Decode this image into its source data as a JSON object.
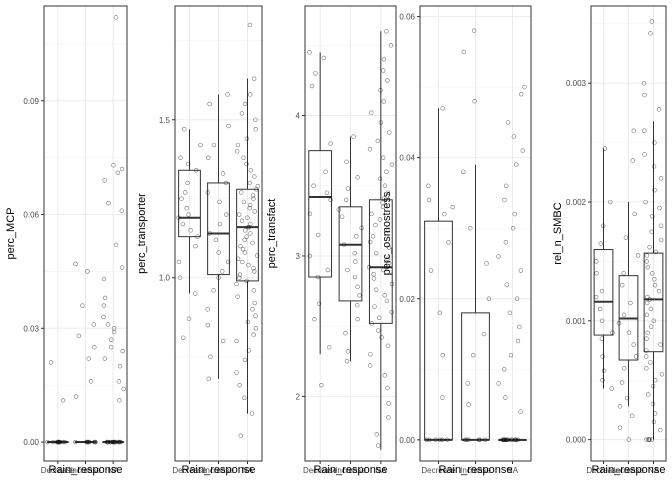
{
  "chart_data": [
    {
      "type": "box",
      "ylabel": "perc_MCP",
      "xlabel": "Rain_response",
      "categories": [
        "Decrease",
        "Increase",
        "NA"
      ],
      "ylim": [
        -0.005,
        0.115
      ],
      "yticks": [
        0.0,
        0.03,
        0.06,
        0.09
      ],
      "ytick_labels": [
        "0.00",
        "0.03",
        "0.06",
        "0.09"
      ],
      "grid": true,
      "boxes": [
        {
          "category": "Decrease",
          "min": 0.0,
          "q1": 0.0,
          "median": 0.0,
          "q3": 0.0,
          "max": 0.0
        },
        {
          "category": "Increase",
          "min": 0.0,
          "q1": 0.0,
          "median": 0.0,
          "q3": 0.0,
          "max": 0.0
        },
        {
          "category": "NA",
          "min": 0.0,
          "q1": 0.0,
          "median": 0.0,
          "q3": 0.0,
          "max": 0.0
        }
      ],
      "points": {
        "Decrease": [
          0.021,
          0.011,
          0,
          0,
          0,
          0,
          0,
          0,
          0,
          0,
          0,
          0,
          0
        ],
        "Increase": [
          0.045,
          0.047,
          0.036,
          0.031,
          0.028,
          0.025,
          0.022,
          0.016,
          0.012,
          0,
          0,
          0,
          0,
          0,
          0,
          0,
          0,
          0
        ],
        "NA": [
          0.112,
          0.073,
          0.072,
          0.071,
          0.069,
          0.063,
          0.061,
          0.052,
          0.046,
          0.043,
          0.038,
          0.036,
          0.033,
          0.031,
          0.03,
          0.029,
          0.027,
          0.025,
          0.024,
          0.022,
          0.02,
          0.016,
          0.014,
          0.011,
          0,
          0,
          0,
          0,
          0,
          0,
          0,
          0,
          0,
          0,
          0,
          0,
          0,
          0,
          0,
          0
        ]
      }
    },
    {
      "type": "box",
      "ylabel": "perc_transporter",
      "xlabel": "Rain_response",
      "categories": [
        "Decrease",
        "Increase",
        "NA"
      ],
      "ylim": [
        0.42,
        1.86
      ],
      "yticks": [
        1.0,
        1.5
      ],
      "ytick_labels": [
        "1.0",
        "1.5"
      ],
      "grid": true,
      "boxes": [
        {
          "category": "Decrease",
          "min": 0.95,
          "q1": 1.13,
          "median": 1.19,
          "q3": 1.34,
          "max": 1.47
        },
        {
          "category": "Increase",
          "min": 0.68,
          "q1": 1.01,
          "median": 1.14,
          "q3": 1.3,
          "max": 1.58
        },
        {
          "category": "NA",
          "min": 0.57,
          "q1": 0.99,
          "median": 1.16,
          "q3": 1.28,
          "max": 1.63
        }
      ],
      "points": {
        "Decrease": [
          1.47,
          1.42,
          1.38,
          1.36,
          1.34,
          1.3,
          1.27,
          1.25,
          1.22,
          1.2,
          1.19,
          1.17,
          1.15,
          1.13,
          1.1,
          1.05,
          1.0,
          0.95,
          0.87,
          0.81
        ],
        "Increase": [
          1.58,
          1.55,
          1.48,
          1.42,
          1.38,
          1.33,
          1.3,
          1.27,
          1.24,
          1.2,
          1.17,
          1.14,
          1.12,
          1.08,
          1.05,
          1.02,
          1.0,
          0.96,
          0.9,
          0.85,
          0.8,
          0.75,
          0.68
        ],
        "NA": [
          1.8,
          1.63,
          1.58,
          1.55,
          1.52,
          1.5,
          1.47,
          1.44,
          1.42,
          1.4,
          1.38,
          1.36,
          1.34,
          1.32,
          1.3,
          1.29,
          1.28,
          1.27,
          1.26,
          1.25,
          1.24,
          1.23,
          1.22,
          1.21,
          1.2,
          1.19,
          1.18,
          1.17,
          1.16,
          1.16,
          1.15,
          1.14,
          1.13,
          1.12,
          1.11,
          1.1,
          1.09,
          1.08,
          1.07,
          1.06,
          1.05,
          1.04,
          1.03,
          1.02,
          1.01,
          1.0,
          0.99,
          0.98,
          0.96,
          0.94,
          0.92,
          0.9,
          0.88,
          0.86,
          0.84,
          0.82,
          0.8,
          0.77,
          0.74,
          0.7,
          0.66,
          0.62,
          0.57,
          0.5
        ]
      }
    },
    {
      "type": "box",
      "ylabel": "perc_transfact",
      "xlabel": "Rain_response",
      "categories": [
        "Decrease",
        "Increase",
        "NA"
      ],
      "ylim": [
        1.54,
        4.78
      ],
      "yticks": [
        2,
        3,
        4
      ],
      "ytick_labels": [
        "2",
        "3",
        "4"
      ],
      "grid": true,
      "boxes": [
        {
          "category": "Decrease",
          "min": 2.3,
          "q1": 2.85,
          "median": 3.42,
          "q3": 3.75,
          "max": 4.45
        },
        {
          "category": "Increase",
          "min": 2.25,
          "q1": 2.68,
          "median": 3.08,
          "q3": 3.35,
          "max": 3.85
        },
        {
          "category": "NA",
          "min": 1.62,
          "q1": 2.52,
          "median": 2.92,
          "q3": 3.4,
          "max": 4.6
        }
      ],
      "points": {
        "Decrease": [
          4.45,
          4.41,
          4.3,
          4.21,
          3.8,
          3.6,
          3.5,
          3.45,
          3.4,
          3.3,
          3.15,
          3.0,
          2.9,
          2.85,
          2.66,
          2.55,
          2.35,
          2.08
        ],
        "Increase": [
          3.85,
          3.67,
          3.56,
          3.48,
          3.4,
          3.33,
          3.28,
          3.2,
          3.14,
          3.08,
          3.02,
          2.96,
          2.9,
          2.85,
          2.78,
          2.72,
          2.65,
          2.55,
          2.45,
          2.32,
          2.25
        ],
        "NA": [
          4.6,
          4.5,
          4.4,
          4.32,
          4.25,
          4.18,
          4.1,
          4.02,
          3.95,
          3.88,
          3.82,
          3.76,
          3.7,
          3.65,
          3.6,
          3.55,
          3.5,
          3.45,
          3.41,
          3.38,
          3.35,
          3.3,
          3.26,
          3.22,
          3.18,
          3.14,
          3.1,
          3.06,
          3.02,
          2.98,
          2.95,
          2.92,
          2.9,
          2.87,
          2.84,
          2.8,
          2.76,
          2.72,
          2.68,
          2.64,
          2.6,
          2.56,
          2.52,
          2.47,
          2.42,
          2.36,
          2.3,
          2.22,
          2.15,
          2.06,
          1.95,
          1.85,
          1.73,
          1.65
        ]
      }
    },
    {
      "type": "box",
      "ylabel": "perc_osmostress",
      "xlabel": "Rain_response",
      "categories": [
        "Decrease",
        "Increase",
        "NA"
      ],
      "ylim": [
        -0.003,
        0.0615
      ],
      "yticks": [
        0.0,
        0.02,
        0.04,
        0.06
      ],
      "ytick_labels": [
        "0.00",
        "0.02",
        "0.04",
        "0.06"
      ],
      "grid": true,
      "boxes": [
        {
          "category": "Decrease",
          "min": 0.0,
          "q1": 0.0,
          "median": 0.0,
          "q3": 0.031,
          "max": 0.047
        },
        {
          "category": "Increase",
          "min": 0.0,
          "q1": 0.0,
          "median": 0.0,
          "q3": 0.018,
          "max": 0.039
        },
        {
          "category": "NA",
          "min": 0.0,
          "q1": 0.0,
          "median": 0.0,
          "q3": 0.0,
          "max": 0.0
        }
      ],
      "points": {
        "Decrease": [
          0.047,
          0.036,
          0.034,
          0.033,
          0.032,
          0.028,
          0.024,
          0.018,
          0.012,
          0.006,
          0,
          0,
          0,
          0,
          0,
          0
        ],
        "Increase": [
          0.058,
          0.055,
          0.048,
          0.038,
          0.03,
          0.025,
          0.02,
          0.015,
          0.012,
          0.008,
          0.005,
          0,
          0,
          0,
          0,
          0,
          0
        ],
        "NA": [
          0.05,
          0.049,
          0.045,
          0.043,
          0.041,
          0.039,
          0.036,
          0.034,
          0.032,
          0.03,
          0.028,
          0.026,
          0.024,
          0.022,
          0.02,
          0.018,
          0.016,
          0.014,
          0.012,
          0.01,
          0.008,
          0.006,
          0.004,
          0,
          0,
          0,
          0,
          0,
          0,
          0,
          0,
          0,
          0,
          0,
          0,
          0,
          0,
          0
        ]
      }
    },
    {
      "type": "box",
      "ylabel": "rel_n_SMBC",
      "xlabel": "Rain_response",
      "categories": [
        "Decrease",
        "Increase",
        "NA"
      ],
      "ylim": [
        -0.00018,
        0.00365
      ],
      "yticks": [
        0.0,
        0.001,
        0.002,
        0.003
      ],
      "ytick_labels": [
        "0.000",
        "0.001",
        "0.002",
        "0.003"
      ],
      "grid": true,
      "boxes": [
        {
          "category": "Decrease",
          "min": 0.00043,
          "q1": 0.00088,
          "median": 0.00116,
          "q3": 0.0016,
          "max": 0.00245
        },
        {
          "category": "Increase",
          "min": 0.00028,
          "q1": 0.00067,
          "median": 0.00102,
          "q3": 0.00138,
          "max": 0.002
        },
        {
          "category": "NA",
          "min": 0.0,
          "q1": 0.00074,
          "median": 0.00118,
          "q3": 0.00157,
          "max": 0.00268
        }
      ],
      "points": {
        "Decrease": [
          0.00245,
          0.002,
          0.0018,
          0.00165,
          0.0015,
          0.0014,
          0.00125,
          0.0012,
          0.0011,
          0.001,
          0.0009,
          0.00085,
          0.0007,
          0.00058,
          0.0005,
          0.00043
        ],
        "Increase": [
          0.0026,
          0.00235,
          0.0019,
          0.0017,
          0.00155,
          0.0014,
          0.0013,
          0.00115,
          0.00105,
          0.00098,
          0.0009,
          0.0008,
          0.0007,
          0.0006,
          0.00048,
          0.00035,
          0.00028,
          0.0002,
          0.0001,
          0
        ],
        "NA": [
          0.00352,
          0.00342,
          0.003,
          0.0029,
          0.00278,
          0.0026,
          0.0025,
          0.0024,
          0.0023,
          0.0022,
          0.0021,
          0.002,
          0.00195,
          0.00188,
          0.0018,
          0.00175,
          0.00168,
          0.00162,
          0.00158,
          0.00155,
          0.0015,
          0.00145,
          0.0014,
          0.00135,
          0.0013,
          0.00125,
          0.0012,
          0.00118,
          0.00115,
          0.0011,
          0.00105,
          0.001,
          0.00095,
          0.0009,
          0.00085,
          0.0008,
          0.00075,
          0.0007,
          0.00065,
          0.0006,
          0.00055,
          0.0005,
          0.00045,
          0.00038,
          0.0003,
          0.00022,
          0.00015,
          8e-05,
          0,
          0,
          0,
          0,
          0
        ]
      }
    }
  ]
}
